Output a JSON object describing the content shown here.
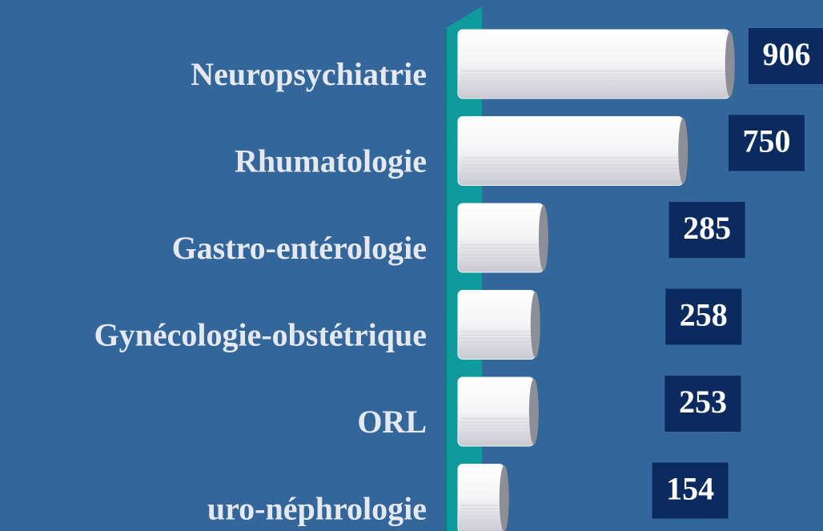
{
  "chart_data": {
    "type": "bar",
    "orientation": "horizontal",
    "categories": [
      "Neuropsychiatrie",
      "Rhumatologie",
      "Gastro-entérologie",
      "Gynécologie-obstétrique",
      "ORL",
      "uro-néphrologie"
    ],
    "values": [
      906,
      750,
      285,
      258,
      253,
      154
    ],
    "color": "#f2f2f4",
    "xlim": [
      0,
      1000
    ]
  }
}
